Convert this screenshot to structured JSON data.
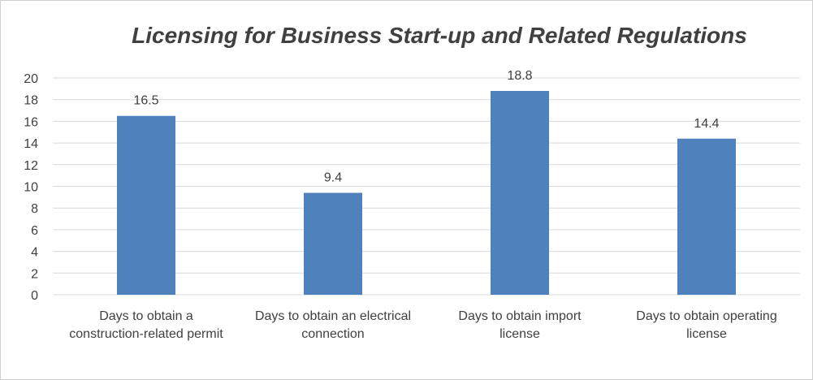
{
  "chart_data": {
    "type": "bar",
    "title": "Licensing for Business Start-up and Related Regulations",
    "categories": [
      "Days to obtain a construction-related permit",
      "Days to obtain an electrical connection",
      "Days to obtain import license",
      "Days to obtain operating license"
    ],
    "values": [
      16.5,
      9.4,
      18.8,
      14.4
    ],
    "color": "#4f81bd",
    "ylim": [
      0,
      20
    ],
    "yticks": [
      0,
      2,
      4,
      6,
      8,
      10,
      12,
      14,
      16,
      18,
      20
    ],
    "grid": true
  }
}
